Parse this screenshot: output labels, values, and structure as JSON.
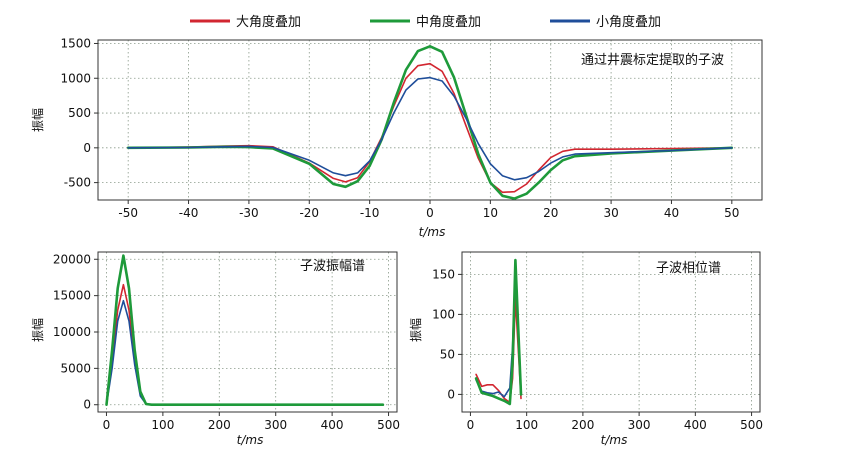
{
  "chart_data": {
    "legend": [
      {
        "label": "大角度叠加",
        "color": "#d22630"
      },
      {
        "label": "中角度叠加",
        "color": "#1e9a3a"
      },
      {
        "label": "小角度叠加",
        "color": "#1f4e9a"
      }
    ],
    "xlabel": "t/ms",
    "charts": [
      {
        "type": "line",
        "annotation": "通过井震标定提取的子波",
        "ylabel": "振幅",
        "xlim": [
          -55,
          55
        ],
        "ylim": [
          -750,
          1550
        ],
        "xticks": [
          -50,
          -40,
          -30,
          -20,
          -10,
          0,
          10,
          20,
          30,
          40,
          50
        ],
        "yticks": [
          -500,
          0,
          500,
          1000,
          1500
        ],
        "grid": true,
        "series": [
          {
            "name": "大角度叠加",
            "color": "#d22630",
            "x": [
              -50,
              -40,
              -34,
              -30,
              -26,
              -20,
              -16,
              -14,
              -12,
              -10,
              -8,
              -6,
              -4,
              -2,
              0,
              2,
              4,
              6,
              8,
              10,
              12,
              14,
              16,
              18,
              20,
              22,
              24,
              30,
              40,
              50
            ],
            "y": [
              0,
              10,
              25,
              30,
              15,
              -220,
              -440,
              -490,
              -430,
              -200,
              150,
              600,
              1000,
              1180,
              1210,
              1100,
              780,
              310,
              -150,
              -500,
              -640,
              -630,
              -520,
              -320,
              -140,
              -50,
              -20,
              -20,
              -10,
              0
            ]
          },
          {
            "name": "中角度叠加",
            "color": "#1e9a3a",
            "x": [
              -50,
              -40,
              -34,
              -30,
              -26,
              -20,
              -16,
              -14,
              -12,
              -10,
              -8,
              -6,
              -4,
              -2,
              0,
              2,
              4,
              6,
              8,
              10,
              12,
              14,
              16,
              18,
              20,
              22,
              24,
              30,
              40,
              50
            ],
            "y": [
              0,
              5,
              15,
              10,
              -10,
              -230,
              -520,
              -560,
              -480,
              -260,
              120,
              650,
              1120,
              1390,
              1460,
              1380,
              1010,
              460,
              -90,
              -500,
              -690,
              -730,
              -660,
              -500,
              -320,
              -180,
              -120,
              -80,
              -40,
              0
            ]
          },
          {
            "name": "小角度叠加",
            "color": "#1f4e9a",
            "x": [
              -50,
              -40,
              -34,
              -30,
              -26,
              -20,
              -16,
              -14,
              -12,
              -10,
              -8,
              -6,
              -4,
              -2,
              0,
              2,
              4,
              6,
              8,
              10,
              12,
              14,
              16,
              18,
              20,
              22,
              24,
              30,
              40,
              50
            ],
            "y": [
              0,
              5,
              15,
              20,
              5,
              -180,
              -360,
              -400,
              -360,
              -190,
              120,
              500,
              830,
              990,
              1010,
              960,
              740,
              420,
              60,
              -230,
              -400,
              -460,
              -430,
              -340,
              -220,
              -130,
              -90,
              -70,
              -40,
              0
            ]
          }
        ]
      },
      {
        "type": "line",
        "annotation": "子波振幅谱",
        "ylabel": "振幅",
        "xlim": [
          -15,
          515
        ],
        "ylim": [
          -1000,
          21000
        ],
        "xticks": [
          0,
          100,
          200,
          300,
          400,
          500
        ],
        "yticks": [
          0,
          5000,
          10000,
          15000,
          20000
        ],
        "grid": true,
        "series": [
          {
            "name": "大角度叠加",
            "color": "#d22630",
            "x": [
              0,
              10,
              20,
              30,
              40,
              50,
              60,
              70,
              80,
              490
            ],
            "y": [
              0,
              6000,
              13000,
              16500,
              13000,
              6000,
              1500,
              100,
              0,
              0
            ]
          },
          {
            "name": "小角度叠加",
            "color": "#1f4e9a",
            "x": [
              0,
              10,
              20,
              30,
              40,
              50,
              60,
              70,
              80,
              490
            ],
            "y": [
              0,
              5000,
              11500,
              14300,
              11500,
              5500,
              1200,
              100,
              0,
              0
            ]
          },
          {
            "name": "中角度叠加",
            "color": "#1e9a3a",
            "x": [
              0,
              10,
              20,
              30,
              40,
              50,
              60,
              70,
              80,
              490
            ],
            "y": [
              0,
              7500,
              16000,
              20500,
              16000,
              7500,
              1800,
              100,
              0,
              0
            ]
          }
        ]
      },
      {
        "type": "line",
        "annotation": "子波相位谱",
        "ylabel": "",
        "xlim": [
          -15,
          515
        ],
        "ylim": [
          -22,
          178
        ],
        "xticks": [
          0,
          100,
          200,
          300,
          400,
          500
        ],
        "yticks": [
          0,
          50,
          100,
          150
        ],
        "grid": true,
        "series": [
          {
            "name": "大角度叠加",
            "color": "#d22630",
            "x": [
              10,
              20,
              30,
              40,
              50,
              60,
              70,
              75,
              80,
              90
            ],
            "y": [
              25,
              10,
              12,
              12,
              5,
              -5,
              -10,
              20,
              120,
              -5
            ]
          },
          {
            "name": "小角度叠加",
            "color": "#1f4e9a",
            "x": [
              10,
              20,
              30,
              40,
              50,
              60,
              70,
              75,
              80,
              90
            ],
            "y": [
              18,
              4,
              2,
              1,
              3,
              -3,
              8,
              60,
              160,
              5
            ]
          },
          {
            "name": "中角度叠加",
            "color": "#1e9a3a",
            "x": [
              10,
              20,
              30,
              40,
              50,
              60,
              70,
              75,
              80,
              90
            ],
            "y": [
              20,
              2,
              0,
              -2,
              -5,
              -8,
              -12,
              40,
              168,
              0
            ]
          }
        ]
      }
    ]
  }
}
